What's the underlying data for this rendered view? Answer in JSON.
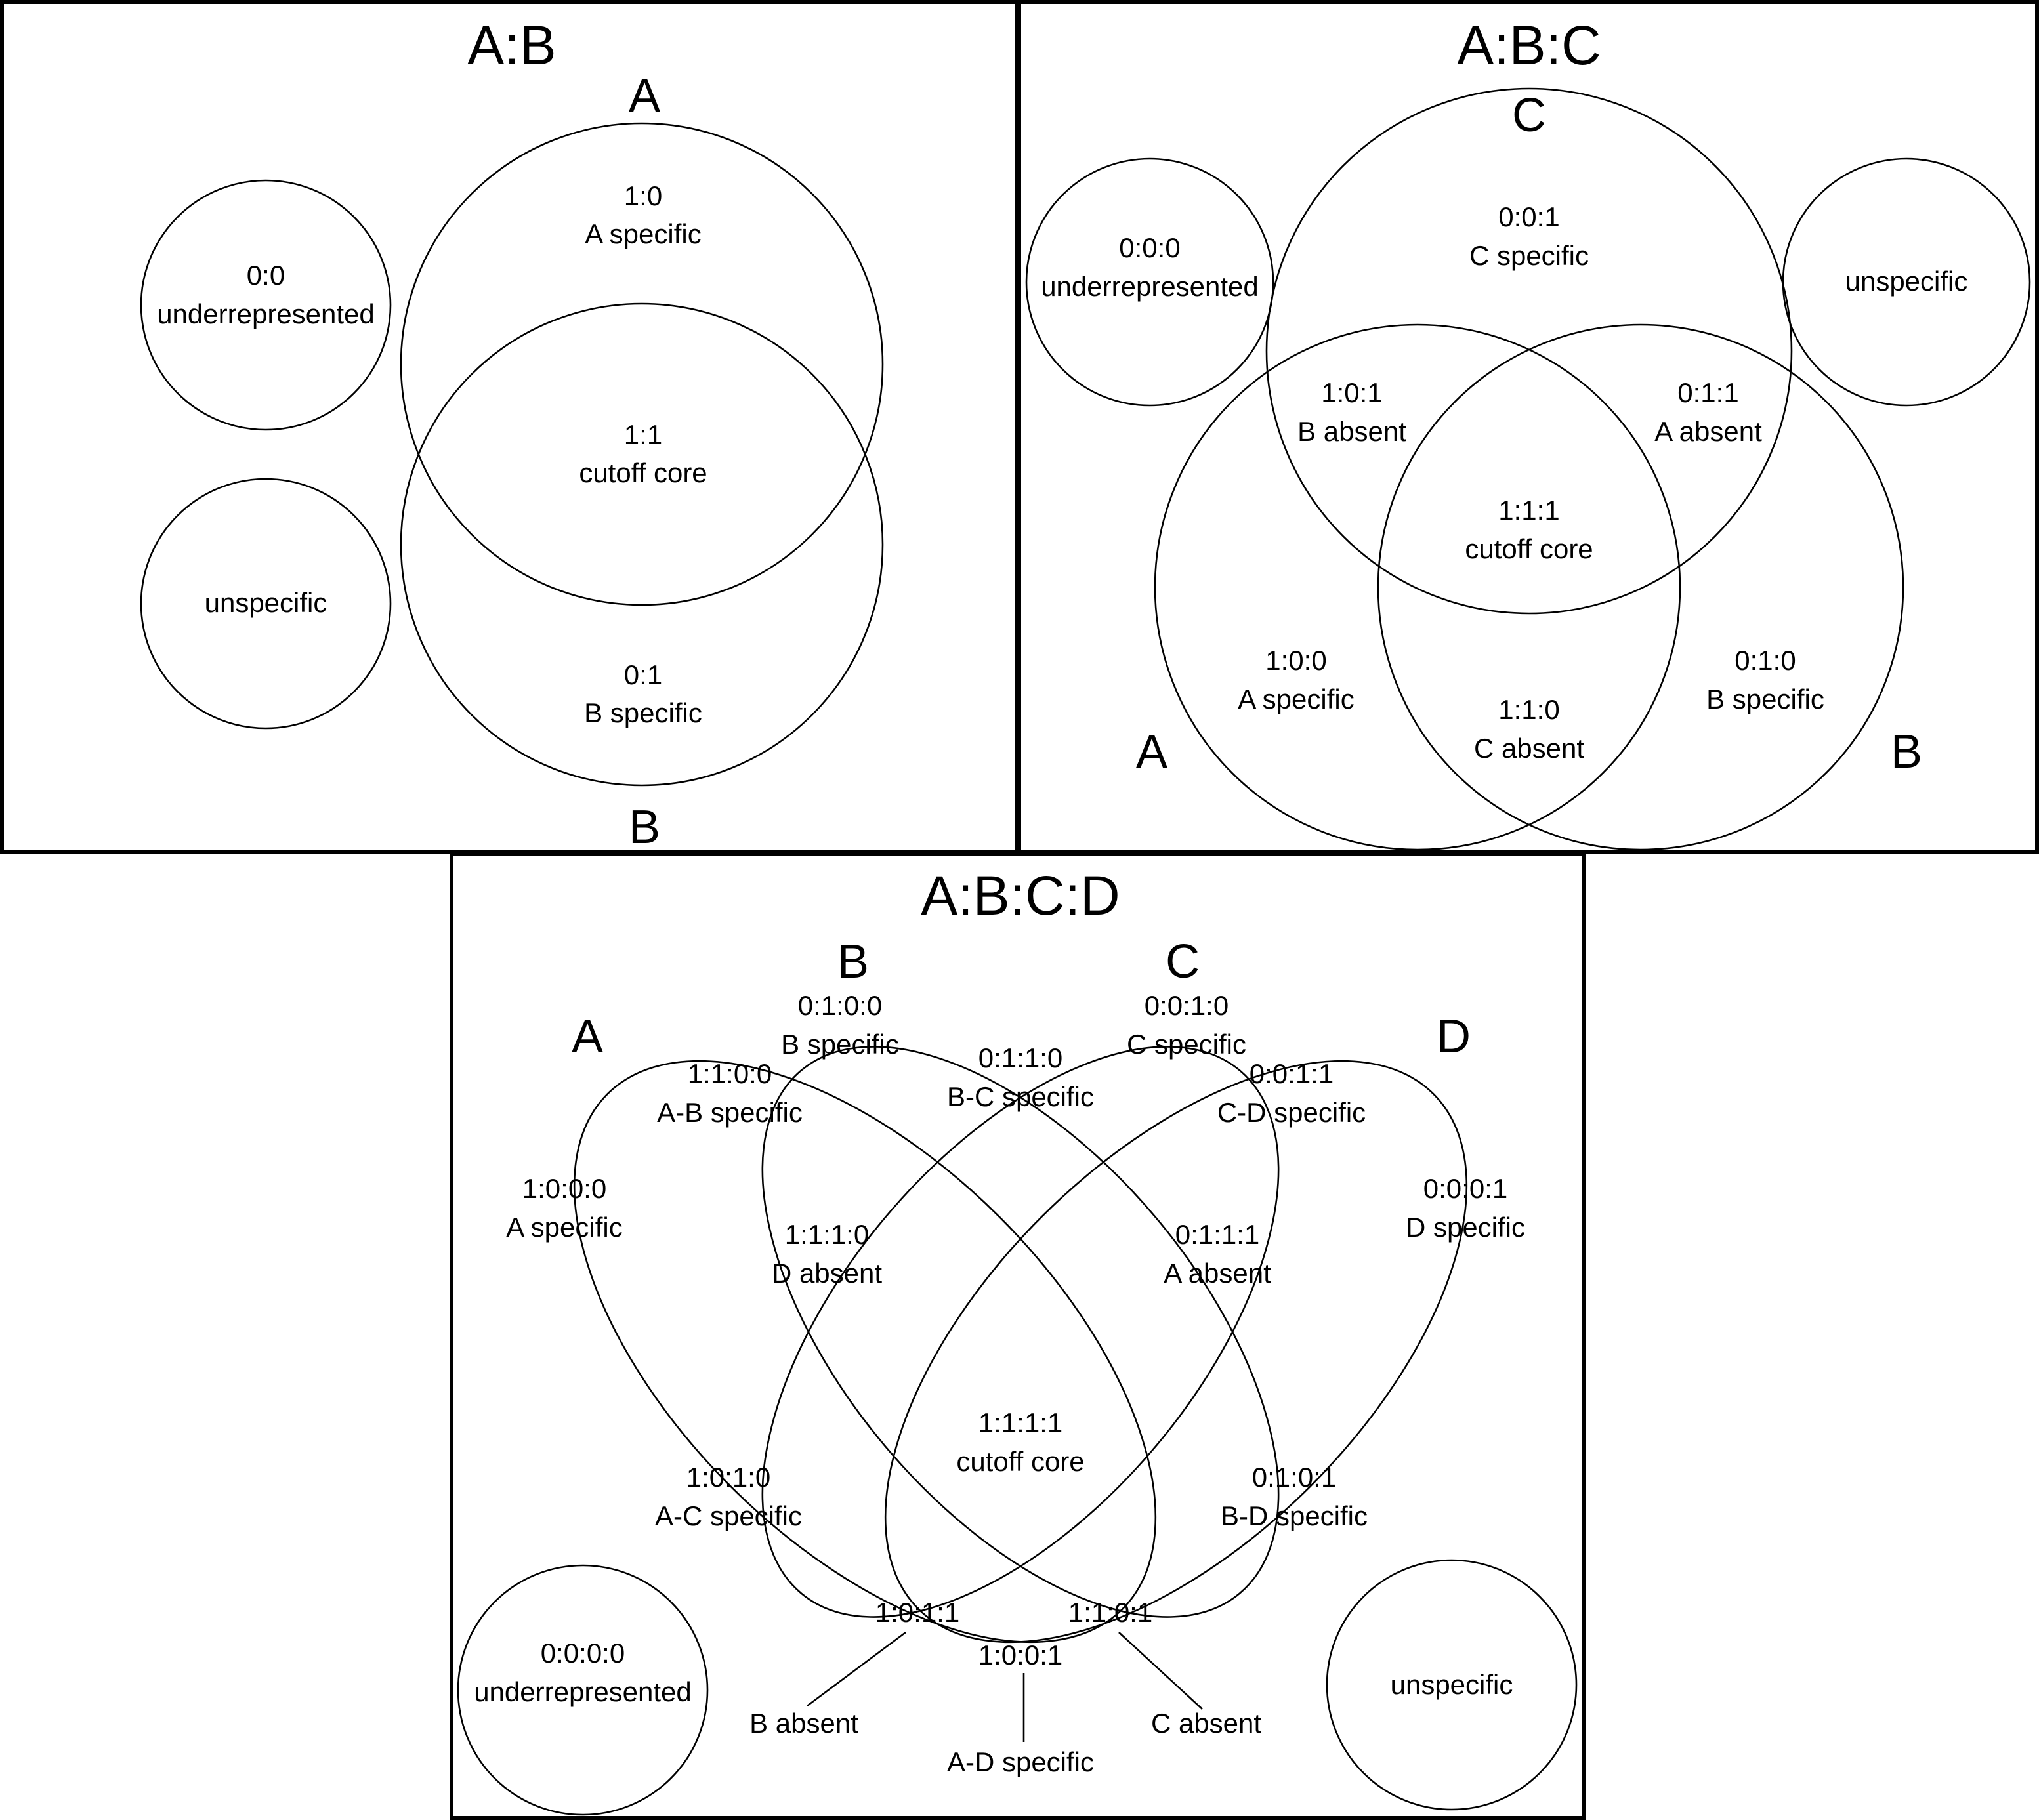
{
  "panel_ab": {
    "title": "A:B",
    "set_a": "A",
    "set_b": "B",
    "underrep_code": "0:0",
    "underrep_text": "underrepresented",
    "unspecific": "unspecific",
    "a_code": "1:0",
    "a_text": "A specific",
    "core_code": "1:1",
    "core_text": "cutoff core",
    "b_code": "0:1",
    "b_text": "B specific"
  },
  "panel_abc": {
    "title": "A:B:C",
    "set_a": "A",
    "set_b": "B",
    "set_c": "C",
    "underrep_code": "0:0:0",
    "underrep_text": "underrepresented",
    "unspecific": "unspecific",
    "c_code": "0:0:1",
    "c_text": "C specific",
    "b_absent_code": "1:0:1",
    "b_absent_text": "B absent",
    "a_absent_code": "0:1:1",
    "a_absent_text": "A absent",
    "core_code": "1:1:1",
    "core_text": "cutoff core",
    "a_code": "1:0:0",
    "a_text": "A specific",
    "c_absent_code": "1:1:0",
    "c_absent_text": "C absent",
    "b_code": "0:1:0",
    "b_text": "B specific"
  },
  "panel_abcd": {
    "title": "A:B:C:D",
    "set_a": "A",
    "set_b": "B",
    "set_c": "C",
    "set_d": "D",
    "b_code": "0:1:0:0",
    "b_text": "B specific",
    "c_code": "0:0:1:0",
    "c_text": "C specific",
    "ab_code": "1:1:0:0",
    "ab_text": "A-B specific",
    "bc_code": "0:1:1:0",
    "bc_text": "B-C specific",
    "cd_code": "0:0:1:1",
    "cd_text": "C-D specific",
    "a_code": "1:0:0:0",
    "a_text": "A specific",
    "d_code": "0:0:0:1",
    "d_text": "D specific",
    "d_absent_code": "1:1:1:0",
    "d_absent_text": "D absent",
    "a_absent_code": "0:1:1:1",
    "a_absent_text": "A absent",
    "core_code": "1:1:1:1",
    "core_text": "cutoff core",
    "ac_code": "1:0:1:0",
    "ac_text": "A-C specific",
    "bd_code": "0:1:0:1",
    "bd_text": "B-D specific",
    "b_absent_code": "1:0:1:1",
    "b_absent_text": "B absent",
    "c_absent_code": "1:1:0:1",
    "c_absent_text": "C absent",
    "ad_code": "1:0:0:1",
    "ad_text": "A-D specific",
    "underrep_code": "0:0:0:0",
    "underrep_text": "underrepresented",
    "unspecific": "unspecific"
  }
}
